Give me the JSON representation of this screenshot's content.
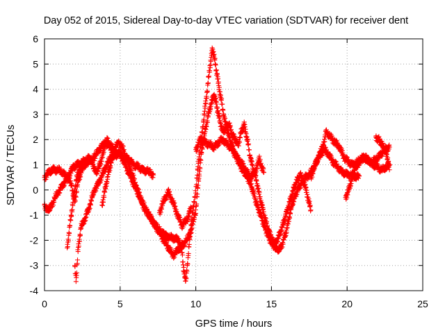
{
  "chart_data": {
    "type": "scatter",
    "title": "Day 052 of 2015, Sidereal Day-to-day VTEC variation (SDTVAR) for receiver dent",
    "xlabel": "GPS time / hours",
    "ylabel": "SDTVAR / TECUs",
    "xlim": [
      0,
      25
    ],
    "ylim": [
      -4,
      6
    ],
    "xticks": [
      "0",
      "5",
      "10",
      "15",
      "20",
      "25"
    ],
    "yticks": [
      "-4",
      "-3",
      "-2",
      "-1",
      "0",
      "1",
      "2",
      "3",
      "4",
      "5",
      "6"
    ],
    "grid": true,
    "legend": "none",
    "marker": "+",
    "series": [
      {
        "name": "SDTVAR",
        "color": "#ff0000",
        "tracks": [
          [
            [
              0.0,
              0.5
            ],
            [
              0.3,
              0.7
            ],
            [
              0.6,
              0.8
            ],
            [
              0.9,
              0.8
            ],
            [
              1.2,
              0.7
            ],
            [
              1.5,
              0.5
            ],
            [
              1.8,
              0.2
            ],
            [
              2.0,
              -0.5
            ],
            [
              2.2,
              0.3
            ],
            [
              2.5,
              0.9
            ],
            [
              2.9,
              1.1
            ],
            [
              3.3,
              1.3
            ],
            [
              3.6,
              1.6
            ],
            [
              4.0,
              1.9
            ],
            [
              4.3,
              1.7
            ],
            [
              4.6,
              1.5
            ],
            [
              5.0,
              1.4
            ],
            [
              5.3,
              1.3
            ],
            [
              5.6,
              1.2
            ],
            [
              5.9,
              1.0
            ],
            [
              6.2,
              0.9
            ],
            [
              6.5,
              0.8
            ],
            [
              6.9,
              0.7
            ],
            [
              7.2,
              0.6
            ]
          ],
          [
            [
              0.0,
              -0.6
            ],
            [
              0.2,
              -0.8
            ],
            [
              0.4,
              -0.7
            ],
            [
              0.7,
              -0.3
            ],
            [
              1.0,
              0.0
            ],
            [
              1.3,
              0.3
            ],
            [
              1.6,
              0.6
            ],
            [
              1.9,
              0.9
            ],
            [
              2.2,
              1.0
            ],
            [
              2.5,
              1.1
            ],
            [
              2.8,
              1.2
            ],
            [
              3.0,
              1.3
            ],
            [
              3.2,
              1.0
            ],
            [
              3.4,
              0.7
            ],
            [
              3.6,
              0.9
            ],
            [
              3.9,
              1.5
            ],
            [
              4.1,
              2.0
            ],
            [
              4.3,
              1.8
            ],
            [
              4.6,
              1.6
            ],
            [
              4.9,
              1.9
            ],
            [
              5.2,
              1.6
            ],
            [
              5.5,
              1.1
            ],
            [
              5.8,
              0.6
            ],
            [
              6.1,
              0.1
            ],
            [
              6.4,
              -0.4
            ],
            [
              6.7,
              -0.8
            ],
            [
              7.0,
              -1.1
            ],
            [
              7.3,
              -1.4
            ],
            [
              7.6,
              -1.7
            ],
            [
              7.9,
              -2.0
            ],
            [
              8.2,
              -2.3
            ],
            [
              8.5,
              -2.6
            ],
            [
              8.8,
              -2.4
            ],
            [
              9.1,
              -2.2
            ],
            [
              9.4,
              -2.0
            ],
            [
              9.7,
              -1.6
            ],
            [
              10.0,
              -0.8
            ],
            [
              10.2,
              0.5
            ],
            [
              10.4,
              1.6
            ],
            [
              10.6,
              2.3
            ],
            [
              10.8,
              2.9
            ],
            [
              11.0,
              3.4
            ],
            [
              11.2,
              3.8
            ],
            [
              11.4,
              3.3
            ],
            [
              11.6,
              2.7
            ],
            [
              11.8,
              2.3
            ],
            [
              12.0,
              2.5
            ],
            [
              12.2,
              2.6
            ],
            [
              12.4,
              2.2
            ],
            [
              12.6,
              2.0
            ],
            [
              12.8,
              1.8
            ],
            [
              13.0,
              2.3
            ],
            [
              13.2,
              2.6
            ],
            [
              13.4,
              2.0
            ],
            [
              13.6,
              1.3
            ],
            [
              13.8,
              0.8
            ],
            [
              14.0,
              0.4
            ],
            [
              14.2,
              -0.2
            ],
            [
              14.4,
              -0.7
            ],
            [
              14.6,
              -1.2
            ],
            [
              14.8,
              -1.6
            ],
            [
              15.0,
              -1.9
            ],
            [
              15.2,
              -2.2
            ],
            [
              15.4,
              -2.4
            ],
            [
              15.6,
              -2.3
            ],
            [
              15.8,
              -2.0
            ],
            [
              16.0,
              -1.6
            ],
            [
              16.2,
              -1.0
            ],
            [
              16.4,
              -0.5
            ],
            [
              16.6,
              -0.2
            ],
            [
              16.8,
              0.1
            ],
            [
              17.0,
              0.3
            ],
            [
              17.2,
              0.5
            ],
            [
              17.5,
              0.6
            ],
            [
              17.8,
              0.9
            ],
            [
              18.1,
              1.3
            ],
            [
              18.4,
              1.7
            ],
            [
              18.6,
              2.3
            ],
            [
              18.9,
              2.1
            ],
            [
              19.2,
              1.9
            ],
            [
              19.5,
              1.7
            ],
            [
              19.8,
              1.3
            ],
            [
              20.1,
              1.1
            ],
            [
              20.4,
              1.0
            ],
            [
              20.7,
              1.1
            ],
            [
              21.0,
              1.3
            ],
            [
              21.3,
              1.2
            ],
            [
              21.6,
              1.1
            ],
            [
              21.9,
              1.2
            ],
            [
              22.2,
              1.4
            ],
            [
              22.5,
              1.6
            ],
            [
              22.8,
              1.7
            ]
          ],
          [
            [
              1.5,
              -2.3
            ],
            [
              1.7,
              -1.3
            ],
            [
              1.9,
              -0.4
            ],
            [
              2.1,
              0.4
            ],
            [
              2.3,
              0.8
            ],
            [
              2.5,
              0.9
            ],
            [
              2.7,
              1.0
            ]
          ],
          [
            [
              2.0,
              -3.0
            ],
            [
              2.1,
              -3.6
            ],
            [
              2.2,
              -2.5
            ],
            [
              2.4,
              -1.5
            ],
            [
              2.7,
              -1.1
            ],
            [
              3.0,
              -0.6
            ],
            [
              3.3,
              0.0
            ],
            [
              3.6,
              0.3
            ],
            [
              3.9,
              0.7
            ],
            [
              4.2,
              1.1
            ],
            [
              4.5,
              1.4
            ],
            [
              4.8,
              1.5
            ],
            [
              5.1,
              1.3
            ],
            [
              5.4,
              0.9
            ],
            [
              5.7,
              0.5
            ],
            [
              6.0,
              0.1
            ],
            [
              6.3,
              -0.3
            ],
            [
              6.6,
              -0.7
            ],
            [
              6.9,
              -1.0
            ],
            [
              7.2,
              -1.3
            ],
            [
              7.6,
              -1.6
            ],
            [
              8.0,
              -1.8
            ],
            [
              8.3,
              -1.9
            ],
            [
              8.6,
              -1.9
            ],
            [
              8.9,
              -2.0
            ],
            [
              9.1,
              -2.5
            ],
            [
              9.2,
              -3.2
            ],
            [
              9.35,
              -3.6
            ],
            [
              9.5,
              -2.6
            ],
            [
              9.7,
              -1.3
            ],
            [
              10.0,
              0.0
            ],
            [
              10.2,
              1.2
            ],
            [
              10.4,
              2.2
            ],
            [
              10.6,
              3.2
            ],
            [
              10.8,
              4.2
            ],
            [
              11.0,
              5.2
            ],
            [
              11.1,
              5.6
            ],
            [
              11.3,
              5.0
            ],
            [
              11.5,
              4.2
            ],
            [
              11.7,
              3.5
            ],
            [
              11.9,
              2.8
            ],
            [
              12.1,
              2.3
            ],
            [
              12.3,
              1.9
            ],
            [
              12.5,
              1.6
            ],
            [
              12.7,
              1.3
            ],
            [
              12.9,
              1.0
            ],
            [
              13.1,
              0.8
            ],
            [
              13.3,
              0.6
            ],
            [
              13.5,
              0.4
            ],
            [
              13.7,
              0.1
            ],
            [
              13.9,
              -0.3
            ],
            [
              14.1,
              -0.7
            ],
            [
              14.3,
              -1.0
            ],
            [
              14.5,
              -1.4
            ],
            [
              14.7,
              -1.7
            ],
            [
              14.9,
              -2.0
            ],
            [
              15.1,
              -2.2
            ],
            [
              15.3,
              -2.1
            ],
            [
              15.5,
              -1.8
            ],
            [
              15.7,
              -1.5
            ],
            [
              15.9,
              -1.1
            ],
            [
              16.1,
              -0.7
            ],
            [
              16.3,
              -0.3
            ],
            [
              16.5,
              0.1
            ],
            [
              16.7,
              0.4
            ],
            [
              16.9,
              0.6
            ],
            [
              17.2,
              0.2
            ],
            [
              17.4,
              -0.3
            ],
            [
              17.6,
              -0.8
            ]
          ],
          [
            [
              3.8,
              -0.6
            ],
            [
              4.0,
              0.0
            ],
            [
              4.2,
              0.6
            ],
            [
              4.4,
              1.1
            ],
            [
              4.6,
              1.4
            ],
            [
              4.8,
              1.3
            ]
          ],
          [
            [
              7.6,
              -0.9
            ],
            [
              7.9,
              -0.4
            ],
            [
              8.2,
              -0.1
            ],
            [
              8.5,
              -0.5
            ],
            [
              8.8,
              -1.0
            ],
            [
              9.1,
              -1.4
            ],
            [
              9.4,
              -1.2
            ],
            [
              9.7,
              -0.7
            ]
          ],
          [
            [
              10.0,
              1.6
            ],
            [
              10.3,
              2.0
            ],
            [
              10.6,
              1.9
            ],
            [
              10.9,
              1.8
            ],
            [
              11.2,
              1.7
            ],
            [
              11.5,
              1.9
            ],
            [
              11.8,
              2.0
            ],
            [
              12.1,
              1.8
            ],
            [
              12.4,
              1.6
            ],
            [
              12.7,
              1.3
            ],
            [
              13.0,
              1.1
            ],
            [
              13.3,
              0.8
            ],
            [
              13.6,
              0.5
            ],
            [
              13.9,
              0.7
            ],
            [
              14.2,
              1.2
            ],
            [
              14.5,
              0.7
            ]
          ],
          [
            [
              17.6,
              0.5
            ],
            [
              17.9,
              1.0
            ],
            [
              18.2,
              1.4
            ],
            [
              18.5,
              1.6
            ],
            [
              18.8,
              1.4
            ],
            [
              19.1,
              1.1
            ],
            [
              19.4,
              0.9
            ],
            [
              19.7,
              0.7
            ],
            [
              20.0,
              0.6
            ],
            [
              20.3,
              0.6
            ],
            [
              20.6,
              0.5
            ],
            [
              20.8,
              0.55
            ]
          ],
          [
            [
              19.9,
              -0.3
            ],
            [
              20.1,
              0.0
            ],
            [
              20.3,
              0.4
            ],
            [
              20.5,
              0.8
            ],
            [
              20.8,
              1.1
            ],
            [
              21.1,
              1.3
            ],
            [
              21.4,
              1.2
            ],
            [
              21.7,
              1.0
            ],
            [
              22.0,
              0.9
            ],
            [
              22.3,
              0.8
            ],
            [
              22.6,
              0.9
            ],
            [
              22.8,
              1.0
            ]
          ],
          [
            [
              21.9,
              2.1
            ],
            [
              22.1,
              2.0
            ],
            [
              22.3,
              1.8
            ],
            [
              22.5,
              1.6
            ],
            [
              22.7,
              1.2
            ],
            [
              22.8,
              0.8
            ]
          ]
        ]
      }
    ]
  }
}
